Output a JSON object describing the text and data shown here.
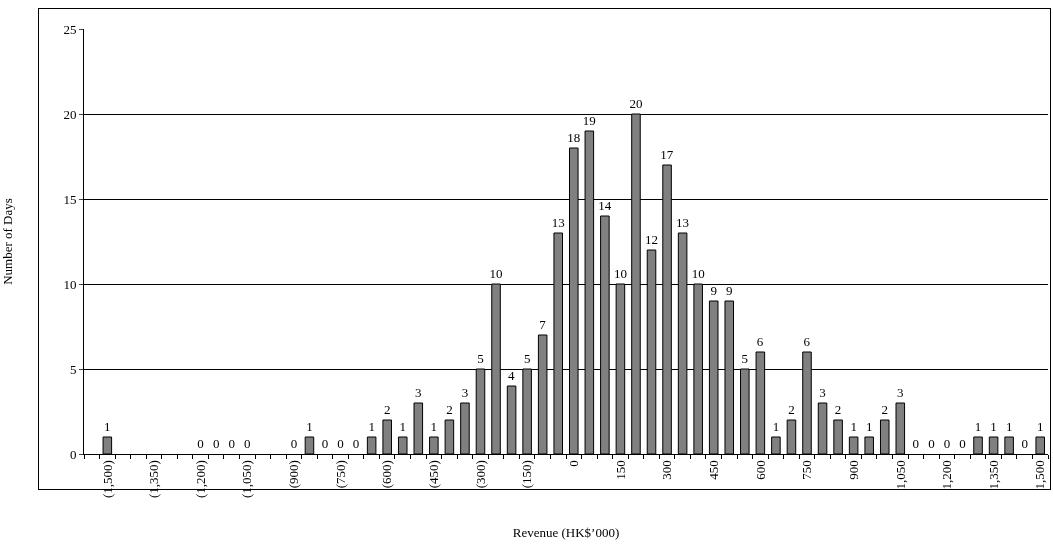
{
  "chart_data": {
    "type": "bar",
    "xlabel": "Revenue (HK$’000)",
    "ylabel": "Number of Days",
    "categories": [
      null,
      "(1,500)",
      null,
      null,
      "(1,350)",
      null,
      null,
      "(1,200)",
      null,
      null,
      "(1,050)",
      null,
      null,
      "(900)",
      null,
      null,
      "(750)",
      null,
      null,
      "(600)",
      null,
      null,
      "(450)",
      null,
      null,
      "(300)",
      null,
      null,
      "(150)",
      null,
      null,
      "0",
      null,
      null,
      "150",
      null,
      null,
      "300",
      null,
      null,
      "450",
      null,
      null,
      "600",
      null,
      null,
      "750",
      null,
      null,
      "900",
      null,
      null,
      "1,050",
      null,
      null,
      "1,200",
      null,
      null,
      "1,350",
      null,
      null,
      "1,500"
    ],
    "values": [
      null,
      1,
      0,
      0,
      0,
      0,
      0,
      0,
      0,
      0,
      0,
      0,
      0,
      0,
      1,
      0,
      0,
      0,
      1,
      2,
      1,
      3,
      1,
      2,
      3,
      5,
      10,
      4,
      5,
      7,
      13,
      18,
      19,
      14,
      10,
      20,
      12,
      17,
      13,
      10,
      9,
      9,
      5,
      6,
      1,
      2,
      6,
      3,
      2,
      1,
      1,
      2,
      3,
      0,
      0,
      0,
      0,
      1,
      1,
      1,
      0,
      1
    ],
    "value_labels": [
      null,
      "1",
      null,
      null,
      null,
      null,
      null,
      "0",
      "0",
      "0",
      "0",
      null,
      null,
      "0",
      "1",
      "0",
      "0",
      "0",
      "1",
      "2",
      "1",
      "3",
      "1",
      "2",
      "3",
      "5",
      "10",
      "4",
      "5",
      "7",
      "13",
      "18",
      "19",
      "14",
      "10",
      "20",
      "12",
      "17",
      "13",
      "10",
      "9",
      "9",
      "5",
      "6",
      "1",
      "2",
      "6",
      "3",
      "2",
      "1",
      "1",
      "2",
      "3",
      "0",
      "0",
      "0",
      "0",
      "1",
      "1",
      "1",
      "0",
      "1"
    ],
    "color": "#808080",
    "ylim": [
      0,
      25
    ],
    "yticks": [
      0,
      5,
      10,
      15,
      20,
      25
    ],
    "grid": "y",
    "legend": false
  }
}
